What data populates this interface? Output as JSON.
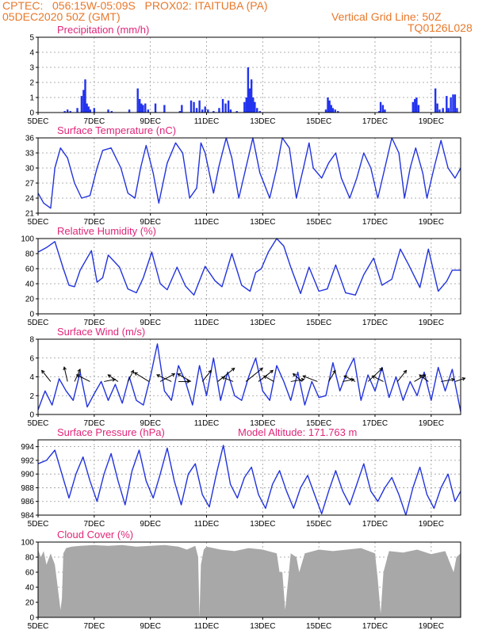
{
  "header": {
    "line1": "CPTEC:   056:15W-05:09S   PROX02: ITAITUBA (PA)",
    "line2_left": "05DEC2020 50Z (GMT)",
    "line2_right": "Vertical Grid Line: 50Z",
    "line3_right": "TQ0126L028"
  },
  "colors": {
    "header": "#e8782a",
    "title": "#e0267a",
    "line": "#2233dd",
    "bar": "#2233ee",
    "cloud": "#a8a8a8",
    "wind_arrow": "#000000"
  },
  "x_axis": {
    "labels": [
      "5DEC",
      "7DEC",
      "9DEC",
      "11DEC",
      "13DEC",
      "15DEC",
      "17DEC",
      "19DEC"
    ],
    "label_days": [
      0,
      2,
      4,
      6,
      8,
      10,
      12,
      14
    ],
    "day_range": [
      0,
      15.05
    ]
  },
  "chart_data": [
    {
      "type": "bar",
      "title": "Precipitation (mm/h)",
      "ylim": [
        0,
        5
      ],
      "yticks": [
        0,
        1,
        2,
        3,
        4,
        5
      ],
      "grid": true,
      "days": [
        0.95,
        1.05,
        1.15,
        1.4,
        1.55,
        1.62,
        1.68,
        1.74,
        1.8,
        1.86,
        2.0,
        2.5,
        2.62,
        3.25,
        3.55,
        3.62,
        3.68,
        3.74,
        3.82,
        3.92,
        4.18,
        4.5,
        5.05,
        5.12,
        5.45,
        5.55,
        5.65,
        5.75,
        5.85,
        5.95,
        6.05,
        6.25,
        6.45,
        6.58,
        6.68,
        6.78,
        6.86,
        7.08,
        7.35,
        7.42,
        7.48,
        7.54,
        7.6,
        7.66,
        7.72,
        7.8,
        7.9,
        10.25,
        10.32,
        10.38,
        10.44,
        10.5,
        10.58,
        10.68,
        12.15,
        12.2,
        12.28,
        12.35,
        13.35,
        13.42,
        13.48,
        13.55,
        14.15,
        14.22,
        14.3,
        14.42,
        14.55,
        14.62,
        14.7,
        14.78,
        14.85,
        14.92
      ],
      "values": [
        0.1,
        0.2,
        0.1,
        0.3,
        1.1,
        1.5,
        2.2,
        0.6,
        0.4,
        0.2,
        0.3,
        0.2,
        0.1,
        0.2,
        1.6,
        0.9,
        0.6,
        0.5,
        0.6,
        0.2,
        0.6,
        0.5,
        0.1,
        0.5,
        0.8,
        0.7,
        0.3,
        0.8,
        0.2,
        0.4,
        0.2,
        0.1,
        0.3,
        0.9,
        0.6,
        0.8,
        0.2,
        0.1,
        0.7,
        1.0,
        3.0,
        1.6,
        2.2,
        1.0,
        0.7,
        0.3,
        0.1,
        0.2,
        1.0,
        0.8,
        0.5,
        0.3,
        0.2,
        0.1,
        0.1,
        0.7,
        0.5,
        0.2,
        0.7,
        0.9,
        1.0,
        0.5,
        1.6,
        0.6,
        0.2,
        0.3,
        1.1,
        0.3,
        1.0,
        1.2,
        1.2,
        0.3
      ]
    },
    {
      "type": "line",
      "title": "Surface Temperature (nC)",
      "ylim": [
        21,
        36
      ],
      "yticks": [
        21,
        24,
        27,
        30,
        33,
        36
      ],
      "grid": true,
      "x": [
        0,
        0.2,
        0.45,
        0.6,
        0.8,
        1.05,
        1.3,
        1.55,
        1.85,
        2.1,
        2.3,
        2.6,
        2.95,
        3.2,
        3.45,
        3.65,
        3.85,
        4.1,
        4.3,
        4.6,
        4.9,
        5.15,
        5.4,
        5.65,
        5.8,
        5.95,
        6.25,
        6.45,
        6.7,
        6.9,
        7.15,
        7.4,
        7.65,
        7.9,
        8.25,
        8.5,
        8.7,
        8.95,
        9.2,
        9.45,
        9.65,
        9.8,
        10.1,
        10.35,
        10.6,
        10.8,
        11.1,
        11.35,
        11.6,
        11.85,
        12.1,
        12.35,
        12.6,
        12.85,
        13.05,
        13.25,
        13.45,
        13.7,
        13.85,
        14.1,
        14.35,
        14.6,
        14.85,
        15.05
      ],
      "values": [
        25,
        23,
        22,
        30,
        34,
        32,
        27,
        24,
        24.5,
        30,
        33.5,
        34,
        30,
        25,
        24,
        30,
        34.5,
        29,
        23,
        31,
        35,
        33,
        24,
        26,
        35,
        33,
        25,
        30.5,
        36,
        32,
        24,
        30,
        36,
        29,
        24,
        30,
        36,
        34,
        24,
        30,
        35,
        30,
        28,
        31,
        33,
        28,
        24,
        28,
        33,
        30,
        24,
        30,
        36,
        33,
        24,
        30,
        34,
        29,
        24,
        30,
        35.5,
        30,
        28,
        30
      ]
    },
    {
      "type": "line",
      "title": "Relative Humidity (%)",
      "ylim": [
        0,
        100
      ],
      "yticks": [
        0,
        20,
        40,
        60,
        80,
        100
      ],
      "grid": true,
      "x": [
        0,
        0.3,
        0.6,
        0.9,
        1.1,
        1.3,
        1.5,
        1.9,
        2.1,
        2.3,
        2.5,
        2.9,
        3.2,
        3.5,
        3.75,
        4.05,
        4.35,
        4.6,
        4.95,
        5.25,
        5.55,
        5.95,
        6.3,
        6.55,
        6.9,
        7.25,
        7.55,
        7.75,
        7.95,
        8.2,
        8.5,
        8.75,
        9.0,
        9.35,
        9.65,
        10.0,
        10.3,
        10.6,
        10.95,
        11.3,
        11.6,
        11.95,
        12.25,
        12.6,
        12.9,
        13.2,
        13.6,
        13.9,
        14.25,
        14.55,
        14.75,
        15.05
      ],
      "values": [
        82,
        88,
        96,
        60,
        38,
        36,
        58,
        84,
        42,
        48,
        78,
        62,
        33,
        28,
        48,
        82,
        40,
        32,
        62,
        37,
        25,
        63,
        44,
        36,
        80,
        38,
        30,
        55,
        60,
        82,
        100,
        90,
        62,
        27,
        62,
        30,
        33,
        65,
        28,
        25,
        52,
        74,
        38,
        46,
        86,
        65,
        35,
        86,
        30,
        43,
        58,
        58
      ]
    },
    {
      "type": "line",
      "title": "Surface Wind (m/s)",
      "ylim": [
        0,
        8
      ],
      "yticks": [
        0,
        2,
        4,
        6,
        8
      ],
      "grid": true,
      "x": [
        0,
        0.25,
        0.5,
        0.75,
        1.0,
        1.25,
        1.5,
        1.75,
        2.0,
        2.25,
        2.5,
        2.75,
        3.0,
        3.25,
        3.5,
        3.75,
        4.0,
        4.25,
        4.5,
        4.75,
        5.0,
        5.25,
        5.5,
        5.75,
        6.0,
        6.25,
        6.5,
        6.75,
        7.0,
        7.25,
        7.5,
        7.75,
        8.0,
        8.25,
        8.5,
        8.75,
        9.0,
        9.25,
        9.5,
        9.75,
        10.0,
        10.25,
        10.5,
        10.75,
        11.0,
        11.25,
        11.5,
        11.75,
        12.0,
        12.25,
        12.5,
        12.75,
        13.0,
        13.25,
        13.5,
        13.75,
        14.0,
        14.25,
        14.5,
        14.75,
        15.05
      ],
      "values": [
        0.5,
        2.5,
        1.0,
        3.8,
        2.5,
        1.5,
        4.5,
        0.8,
        2.2,
        3.5,
        1.5,
        3.2,
        1.2,
        4.0,
        1.5,
        1.0,
        4.0,
        7.5,
        2.5,
        1.5,
        5.2,
        3.5,
        1.0,
        5.2,
        2.0,
        6.0,
        1.5,
        4.5,
        2.0,
        1.5,
        4.0,
        6.0,
        2.5,
        1.5,
        5.2,
        3.5,
        1.5,
        4.5,
        1.0,
        3.5,
        1.8,
        2.0,
        5.5,
        2.5,
        4.5,
        6.0,
        1.5,
        4.2,
        2.5,
        5.0,
        1.8,
        4.0,
        1.5,
        3.5,
        2.0,
        4.5,
        1.5,
        5.0,
        2.5,
        4.8,
        0.3
      ],
      "arrows": [
        {
          "day": 0.45,
          "u": -0.8,
          "v": 1.0
        },
        {
          "day": 1.05,
          "u": -0.3,
          "v": 1.3
        },
        {
          "day": 1.3,
          "u": 0.5,
          "v": 1.1
        },
        {
          "day": 1.85,
          "u": -1.2,
          "v": 0.6
        },
        {
          "day": 2.35,
          "u": 1.0,
          "v": 0.2
        },
        {
          "day": 2.85,
          "u": -0.9,
          "v": 0.6
        },
        {
          "day": 3.2,
          "u": 0.5,
          "v": 1.0
        },
        {
          "day": 3.95,
          "u": -1.3,
          "v": 0.8
        },
        {
          "day": 4.35,
          "u": 1.3,
          "v": 0.7
        },
        {
          "day": 4.75,
          "u": -1.3,
          "v": 0.6
        },
        {
          "day": 5.0,
          "u": 1.0,
          "v": 0.0
        },
        {
          "day": 5.45,
          "u": -1.2,
          "v": 0.7
        },
        {
          "day": 5.85,
          "u": 0.8,
          "v": 1.0
        },
        {
          "day": 6.4,
          "u": 1.5,
          "v": 1.2
        },
        {
          "day": 6.95,
          "u": -1.0,
          "v": 0.4
        },
        {
          "day": 7.4,
          "u": 1.5,
          "v": 1.2
        },
        {
          "day": 7.85,
          "u": 1.3,
          "v": 1.0
        },
        {
          "day": 8.4,
          "u": -0.9,
          "v": 0.5
        },
        {
          "day": 9.0,
          "u": 1.2,
          "v": 0.2
        },
        {
          "day": 9.4,
          "u": -0.8,
          "v": 0.7
        },
        {
          "day": 9.95,
          "u": -1.3,
          "v": 0.5
        },
        {
          "day": 10.35,
          "u": 0.6,
          "v": 1.0
        },
        {
          "day": 10.85,
          "u": 1.0,
          "v": 0.2
        },
        {
          "day": 11.3,
          "u": -1.0,
          "v": 0.5
        },
        {
          "day": 11.75,
          "u": 1.3,
          "v": 1.2
        },
        {
          "day": 12.3,
          "u": -1.0,
          "v": 0.5
        },
        {
          "day": 12.8,
          "u": 0.8,
          "v": 1.0
        },
        {
          "day": 13.4,
          "u": 1.0,
          "v": 0.6
        },
        {
          "day": 13.9,
          "u": -0.8,
          "v": 0.6
        },
        {
          "day": 14.35,
          "u": 1.2,
          "v": 0.2
        },
        {
          "day": 14.85,
          "u": 0.9,
          "v": 0.3
        }
      ]
    },
    {
      "type": "line",
      "title": "Surface Pressure (hPa)",
      "annotation": "Model Altitude: 171.763 m",
      "ylim": [
        984,
        995
      ],
      "yticks": [
        984,
        986,
        988,
        990,
        992,
        994
      ],
      "grid": true,
      "x": [
        0,
        0.3,
        0.6,
        0.85,
        1.1,
        1.35,
        1.6,
        1.85,
        2.1,
        2.35,
        2.6,
        2.85,
        3.1,
        3.35,
        3.6,
        3.85,
        4.1,
        4.35,
        4.6,
        4.85,
        5.1,
        5.35,
        5.6,
        5.85,
        6.1,
        6.35,
        6.6,
        6.85,
        7.1,
        7.35,
        7.6,
        7.85,
        8.1,
        8.35,
        8.6,
        8.85,
        9.1,
        9.35,
        9.6,
        9.85,
        10.1,
        10.35,
        10.6,
        10.85,
        11.1,
        11.35,
        11.6,
        11.85,
        12.1,
        12.35,
        12.6,
        12.85,
        13.1,
        13.35,
        13.6,
        13.85,
        14.1,
        14.35,
        14.6,
        14.85,
        15.05
      ],
      "values": [
        991.5,
        992.0,
        993.5,
        990.0,
        986.5,
        990.0,
        992.5,
        989.0,
        986.0,
        990.0,
        993.0,
        989.0,
        985.5,
        990.5,
        993.5,
        989.0,
        986.5,
        990.0,
        993.8,
        989.0,
        985.5,
        990.0,
        991.5,
        987.0,
        985.2,
        990.0,
        994.2,
        988.5,
        986.5,
        989.5,
        991.0,
        987.0,
        985.0,
        988.5,
        990.5,
        987.5,
        985.0,
        988.0,
        989.8,
        987.0,
        984.2,
        987.5,
        990.5,
        987.5,
        985.5,
        988.5,
        991.5,
        987.5,
        986.0,
        988.0,
        989.5,
        987.0,
        984.0,
        988.0,
        991.0,
        987.0,
        985.0,
        988.0,
        990.0,
        986.0,
        987.5
      ]
    },
    {
      "type": "area",
      "title": "Cloud Cover (%)",
      "ylim": [
        0,
        100
      ],
      "yticks": [
        0,
        20,
        40,
        60,
        80,
        100
      ],
      "grid": true,
      "x": [
        0,
        0.1,
        0.2,
        0.3,
        0.45,
        0.6,
        0.7,
        0.8,
        0.85,
        0.9,
        1.0,
        1.2,
        1.5,
        2.0,
        2.5,
        3.0,
        3.5,
        4.0,
        4.5,
        5.0,
        5.3,
        5.6,
        5.7,
        5.75,
        5.8,
        5.9,
        6.0,
        6.5,
        7.0,
        7.5,
        8.0,
        8.5,
        8.6,
        8.7,
        8.8,
        9.0,
        9.2,
        9.3,
        9.5,
        10.0,
        10.5,
        11.0,
        11.5,
        12.0,
        12.1,
        12.2,
        12.3,
        12.5,
        13.0,
        13.5,
        14.0,
        14.5,
        14.8,
        14.9,
        15.05
      ],
      "values": [
        90,
        80,
        88,
        70,
        85,
        70,
        40,
        10,
        25,
        85,
        92,
        94,
        95,
        96,
        95,
        96,
        94,
        95,
        96,
        94,
        90,
        95,
        80,
        0,
        70,
        90,
        94,
        90,
        88,
        92,
        90,
        85,
        60,
        60,
        10,
        85,
        80,
        60,
        85,
        90,
        88,
        90,
        92,
        85,
        50,
        5,
        60,
        88,
        86,
        90,
        84,
        88,
        60,
        80,
        85
      ]
    }
  ]
}
